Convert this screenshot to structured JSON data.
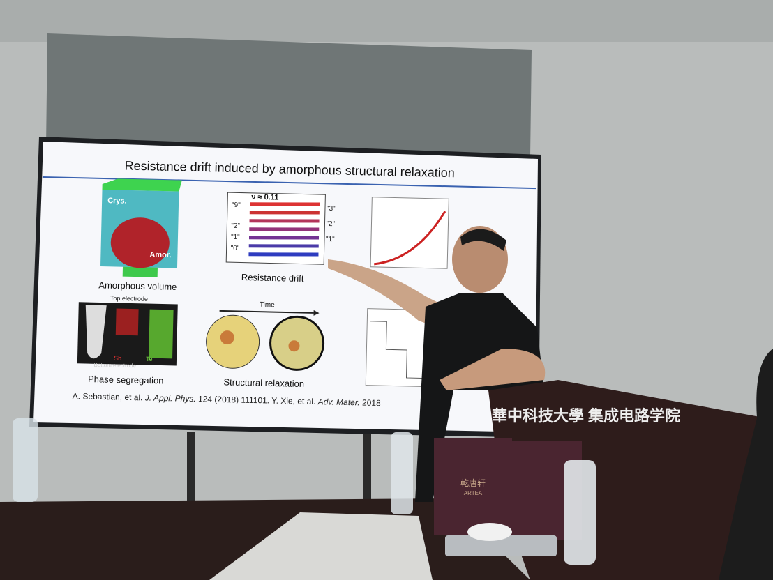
{
  "slide": {
    "title": "Resistance drift induced by amorphous structural relaxation",
    "panels": [
      {
        "caption": "Amorphous volume",
        "labels": [
          "Crys.",
          "Amor."
        ]
      },
      {
        "caption": "Resistance drift",
        "labels": [
          "ν ≈ 0.11",
          "\"9\"",
          "\"2\"",
          "\"1\"",
          "\"0\"",
          "\"3\"",
          "\"2\"",
          "\"1\""
        ]
      },
      {
        "caption": "Phase segregation",
        "labels": [
          "Top electrode",
          "Bottom electrode",
          "Sb",
          "Te"
        ]
      },
      {
        "caption": "Structural relaxation",
        "labels": [
          "Time"
        ]
      }
    ],
    "citation": [
      "A. Sebastian, et al. ",
      "J. Appl. Phys.",
      " 124 (2018) 111101. Y. Xie, et al. ",
      "Adv. Mater.",
      " 2018"
    ]
  },
  "podium": {
    "text": "華中科技大學 集成电路学院"
  },
  "bag": {
    "text": "乾唐轩",
    "brand": "ARTEA"
  }
}
